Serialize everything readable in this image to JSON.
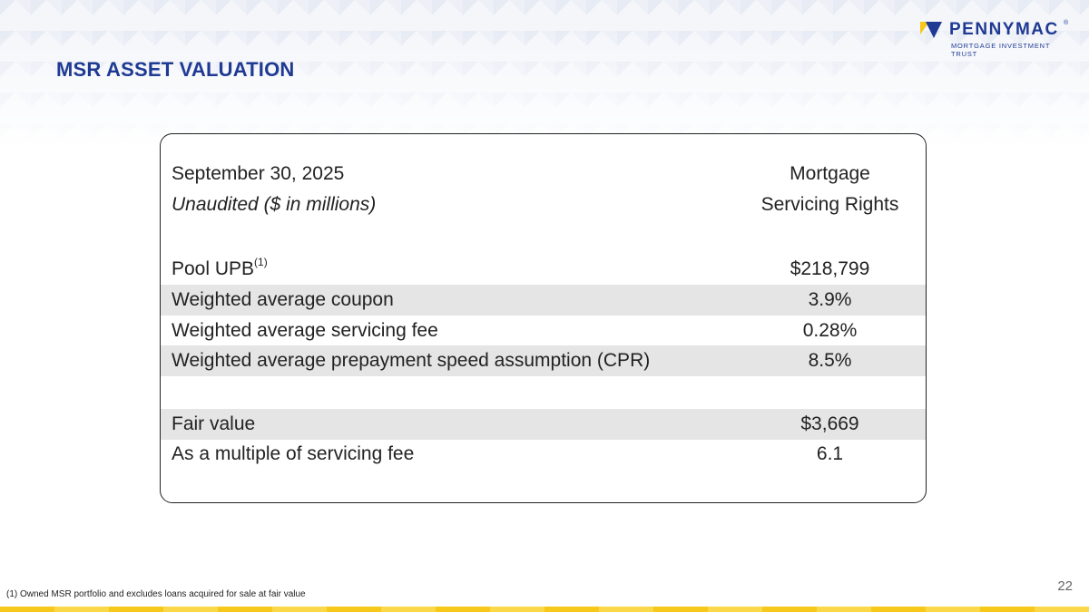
{
  "header": {
    "title": "MSR ASSET VALUATION",
    "logo_name": "PENNYMAC",
    "logo_registered": "®",
    "logo_tagline": "MORTGAGE INVESTMENT TRUST"
  },
  "table": {
    "header_row1": {
      "label": "September 30, 2025",
      "value": "Mortgage"
    },
    "header_row2": {
      "label": "Unaudited ($ in millions)",
      "value": "Servicing Rights"
    },
    "rows": [
      {
        "label": "Pool UPB",
        "sup": "(1)",
        "value": "$218,799"
      },
      {
        "label": "Weighted average coupon",
        "value": "3.9%"
      },
      {
        "label": "Weighted average servicing fee",
        "value": "0.28%"
      },
      {
        "label": "Weighted average prepayment speed assumption (CPR)",
        "value": "8.5%"
      },
      {
        "label": "Fair value",
        "value": "$3,669"
      },
      {
        "label": "As a multiple of servicing fee",
        "value": "6.1"
      }
    ]
  },
  "footnote": "(1) Owned MSR portfolio and excludes loans acquired for sale at fair value",
  "page_number": "22",
  "colors": {
    "brand_blue": "#1f3a93",
    "accent_yellow": "#f6c81a",
    "row_shade": "#e5e5e5"
  }
}
